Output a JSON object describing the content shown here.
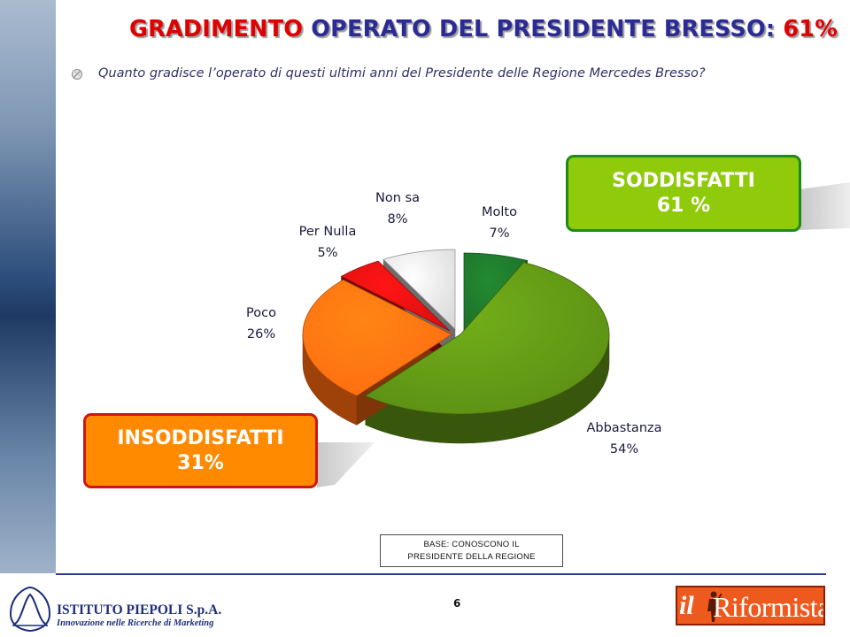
{
  "header": {
    "title_part1": "GRADIMENTO",
    "title_part2": "OPERATO DEL PRESIDENTE BRESSO:",
    "title_part3": "61%",
    "question": "Quanto gradisce l’operato di questi ultimi anni del Presidente delle Regione Mercedes Bresso?",
    "bullet_icon": "circle-bullet-icon"
  },
  "callouts": {
    "satisfied": {
      "label": "SODDISFATTI",
      "value": "61 %"
    },
    "unsatisfied": {
      "label": "INSODDISFATTI",
      "value": "31%"
    }
  },
  "chart_data": {
    "type": "pie",
    "title": "",
    "slices": [
      {
        "name": "Molto",
        "label": "7%",
        "value": 7,
        "color": "#1c6e28"
      },
      {
        "name": "Abbastanza",
        "label": "54%",
        "value": 54,
        "color": "#5a8c14"
      },
      {
        "name": "Poco",
        "label": "26%",
        "value": 26,
        "color": "#ff6a10"
      },
      {
        "name": "Per Nulla",
        "label": "5%",
        "value": 5,
        "color": "#d81010"
      },
      {
        "name": "Non sa",
        "label": "8%",
        "value": 8,
        "color": "#d9d9d9"
      }
    ]
  },
  "base_note": {
    "line1": "BASE: CONOSCONO IL",
    "line2": "PRESIDENTE DELLA REGIONE"
  },
  "footer": {
    "page_number": "6",
    "company_name": "ISTITUTO PIEPOLI  S.p.A.",
    "company_tagline": "Innovazione nelle Ricerche di Marketing",
    "partner_logo_text_il": "il",
    "partner_logo_text_word": "Riformista",
    "company_logo_icon": "bell-curve-logo-icon",
    "partner_logo_icon": "riformista-logo-icon"
  },
  "colors": {
    "title_red": "#e00000",
    "title_blue": "#2b2b95",
    "satisfied_fill": "#8fcb0a",
    "satisfied_border": "#1e8a18",
    "unsatisfied_fill": "#ff8a00",
    "unsatisfied_border": "#cf1515"
  }
}
